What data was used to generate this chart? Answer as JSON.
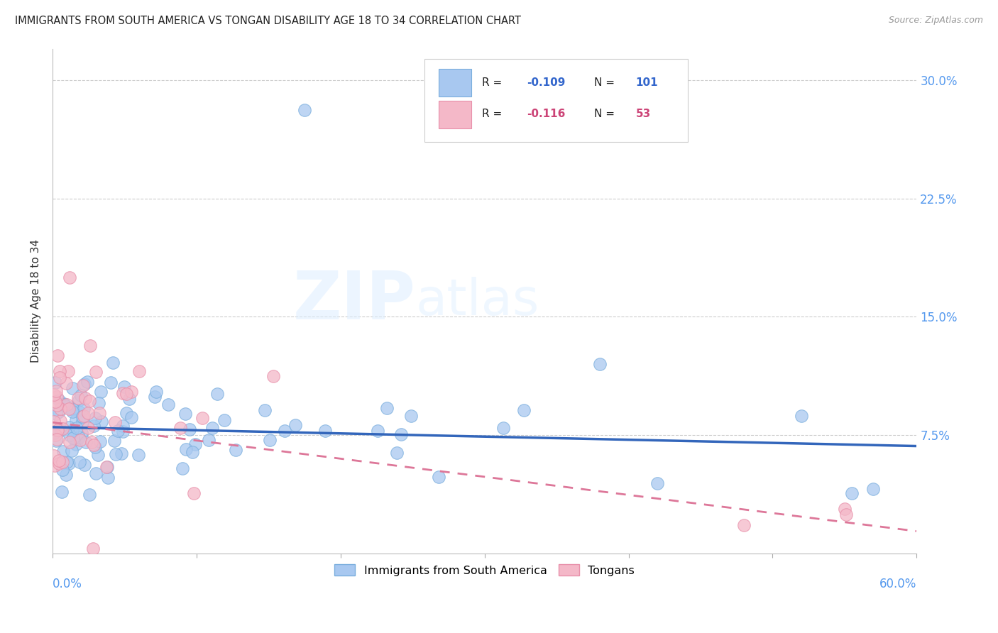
{
  "title": "IMMIGRANTS FROM SOUTH AMERICA VS TONGAN DISABILITY AGE 18 TO 34 CORRELATION CHART",
  "source": "Source: ZipAtlas.com",
  "ylabel": "Disability Age 18 to 34",
  "xlim": [
    0.0,
    0.6
  ],
  "ylim": [
    0.0,
    0.32
  ],
  "blue_R": -0.109,
  "blue_N": 101,
  "pink_R": -0.116,
  "pink_N": 53,
  "blue_color": "#a8c8f0",
  "blue_edge": "#7aaedd",
  "pink_color": "#f4b8c8",
  "pink_edge": "#e890aa",
  "blue_line_color": "#3366bb",
  "pink_line_color": "#dd7799",
  "blue_intercept": 0.08,
  "blue_slope": -0.02,
  "pink_intercept": 0.083,
  "pink_slope": -0.115
}
